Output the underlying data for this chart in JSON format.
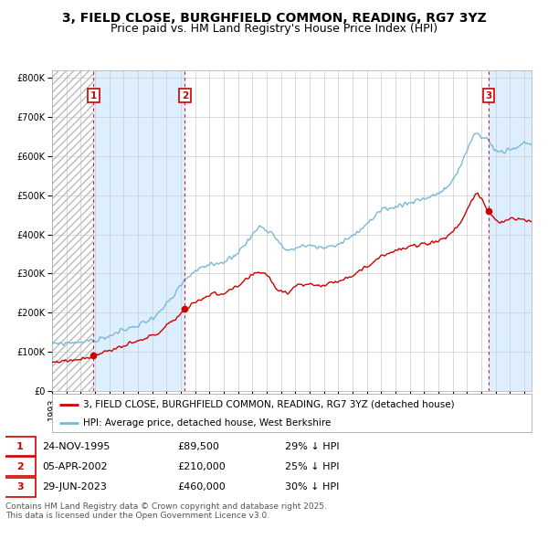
{
  "title_line1": "3, FIELD CLOSE, BURGHFIELD COMMON, READING, RG7 3YZ",
  "title_line2": "Price paid vs. HM Land Registry's House Price Index (HPI)",
  "xlim_start": 1993.0,
  "xlim_end": 2026.5,
  "ylim_min": 0,
  "ylim_max": 820000,
  "yticks": [
    0,
    100000,
    200000,
    300000,
    400000,
    500000,
    600000,
    700000,
    800000
  ],
  "ytick_labels": [
    "£0",
    "£100K",
    "£200K",
    "£300K",
    "£400K",
    "£500K",
    "£600K",
    "£700K",
    "£800K"
  ],
  "hpi_color": "#7ab8d9",
  "price_color": "#cc0000",
  "vline_color": "#cc0000",
  "shade_color": "#ddeeff",
  "grid_color": "#cccccc",
  "background_color": "#ffffff",
  "sale_dates_decimal": [
    1995.9,
    2002.27,
    2023.49
  ],
  "sale_prices": [
    89500,
    210000,
    460000
  ],
  "sale_labels": [
    "1",
    "2",
    "3"
  ],
  "legend_label_price": "3, FIELD CLOSE, BURGHFIELD COMMON, READING, RG7 3YZ (detached house)",
  "legend_label_hpi": "HPI: Average price, detached house, West Berkshire",
  "table_rows": [
    [
      "1",
      "24-NOV-1995",
      "£89,500",
      "29% ↓ HPI"
    ],
    [
      "2",
      "05-APR-2002",
      "£210,000",
      "25% ↓ HPI"
    ],
    [
      "3",
      "29-JUN-2023",
      "£460,000",
      "30% ↓ HPI"
    ]
  ],
  "footer_text": "Contains HM Land Registry data © Crown copyright and database right 2025.\nThis data is licensed under the Open Government Licence v3.0.",
  "title_fontsize": 10,
  "subtitle_fontsize": 9,
  "tick_fontsize": 7,
  "legend_fontsize": 7.5,
  "table_fontsize": 8,
  "footer_fontsize": 6.5
}
